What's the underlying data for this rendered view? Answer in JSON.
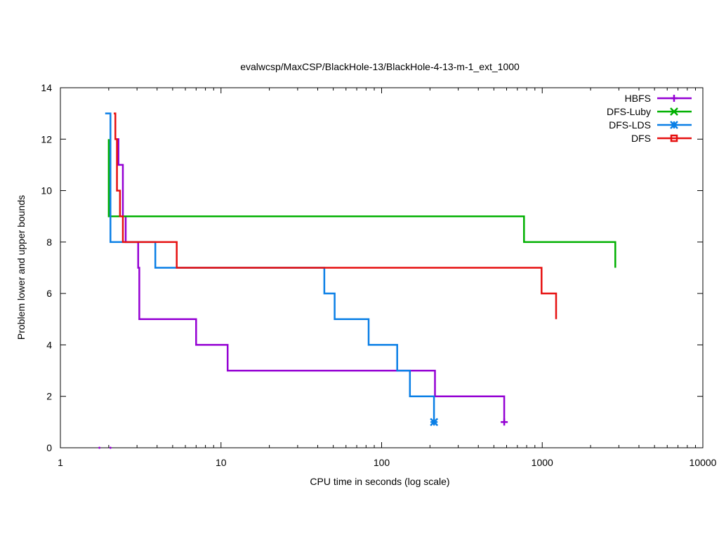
{
  "chart_data": {
    "type": "line",
    "title": "evalwcsp/MaxCSP/BlackHole-13/BlackHole-4-13-m-1_ext_1000",
    "xlabel": "CPU time in seconds (log scale)",
    "ylabel": "Problem lower and upper bounds",
    "xscale": "log",
    "xlim": [
      1,
      10000
    ],
    "ylim": [
      0,
      14
    ],
    "xticks": [
      1,
      10,
      100,
      1000,
      10000
    ],
    "xtick_labels": [
      "1",
      "10",
      "100",
      "1000",
      "10000"
    ],
    "yticks": [
      0,
      2,
      4,
      6,
      8,
      10,
      12,
      14
    ],
    "ytick_labels": [
      "0",
      "2",
      "4",
      "6",
      "8",
      "10",
      "12",
      "14"
    ],
    "grid": false,
    "legend_position": "top-right",
    "series": [
      {
        "name": "HBFS",
        "color": "#9400d3",
        "marker": "plus",
        "upper": [
          [
            2.2,
            12
          ],
          [
            2.3,
            11
          ],
          [
            2.45,
            9
          ],
          [
            2.55,
            8
          ],
          [
            3.05,
            7
          ],
          [
            3.1,
            5
          ],
          [
            7.0,
            4
          ],
          [
            11.0,
            3
          ],
          [
            215,
            2
          ],
          [
            580,
            1
          ]
        ],
        "lower": [
          [
            1.75,
            0
          ],
          [
            2.05,
            0
          ]
        ],
        "end_marker": [
          580,
          1
        ]
      },
      {
        "name": "DFS-Luby",
        "color": "#00b000",
        "marker": "x",
        "upper": [
          [
            2.0,
            12
          ],
          [
            2.0,
            9
          ],
          [
            770,
            8
          ],
          [
            2850,
            7
          ]
        ]
      },
      {
        "name": "DFS-LDS",
        "color": "#0a7fe6",
        "marker": "asterisk",
        "upper": [
          [
            1.9,
            13
          ],
          [
            2.05,
            8
          ],
          [
            3.9,
            7
          ],
          [
            44,
            6
          ],
          [
            51,
            5
          ],
          [
            83,
            4
          ],
          [
            125,
            3
          ],
          [
            150,
            2
          ],
          [
            212,
            1
          ]
        ],
        "end_marker": [
          212,
          1
        ]
      },
      {
        "name": "DFS",
        "color": "#e61010",
        "marker": "square",
        "upper": [
          [
            2.15,
            13
          ],
          [
            2.2,
            12
          ],
          [
            2.25,
            10
          ],
          [
            2.35,
            9
          ],
          [
            2.45,
            8
          ],
          [
            5.3,
            7
          ],
          [
            990,
            6
          ],
          [
            1220,
            5
          ]
        ]
      }
    ]
  }
}
